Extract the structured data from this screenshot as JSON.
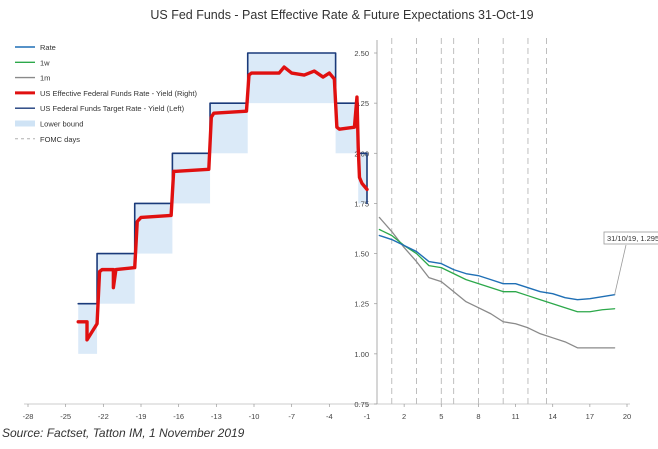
{
  "chart_data": [
    {
      "type": "line",
      "title": "US Fed Funds - Past Effective Rate & Future Expectations 31-Oct-19",
      "panel": "left",
      "x_ticks": [
        -28,
        -25,
        -22,
        -19,
        -16,
        -13,
        -10,
        -7,
        -4,
        -1
      ],
      "xlim": [
        -28,
        -1
      ],
      "right_axis_ticks": [
        2.5,
        2.25,
        2.0,
        1.75,
        1.5,
        1.25,
        1.0,
        0.75
      ],
      "ylim": [
        0.75,
        2.5
      ],
      "legend_position": "top-left",
      "legend": [
        {
          "name": "Rate",
          "color": "#1f6fb5",
          "style": "line"
        },
        {
          "name": "1w",
          "color": "#2ca84a",
          "style": "line"
        },
        {
          "name": "1m",
          "color": "#8a8a8a",
          "style": "line"
        },
        {
          "name": "US Effective Federal Funds Rate - Yield (Right)",
          "color": "#e01010",
          "style": "thick"
        },
        {
          "name": "US Federal Funds Target Rate - Yield (Left)",
          "color": "#1a3a7a",
          "style": "line"
        },
        {
          "name": "Lower bound",
          "color": "#cfe3f5",
          "style": "band"
        },
        {
          "name": "FOMC days",
          "color": "#b0b0b0",
          "style": "dash"
        }
      ],
      "series": [
        {
          "name": "US Federal Funds Target Rate - Yield (Left)",
          "color": "#1a3a7a",
          "x": [
            -24,
            -22.5,
            -22.5,
            -19.5,
            -19.5,
            -16.5,
            -16.5,
            -13.5,
            -13.5,
            -10.5,
            -10.5,
            -3.5,
            -3.5,
            -1.7,
            -1.7,
            -1.0,
            -1.0
          ],
          "y": [
            1.25,
            1.25,
            1.5,
            1.5,
            1.75,
            1.75,
            2.0,
            2.0,
            2.25,
            2.25,
            2.5,
            2.5,
            2.25,
            2.25,
            2.0,
            2.0,
            1.75
          ]
        },
        {
          "name": "Lower bound",
          "color": "#cfe3f5",
          "x": [
            -24,
            -22.5,
            -22.5,
            -19.5,
            -19.5,
            -16.5,
            -16.5,
            -13.5,
            -13.5,
            -10.5,
            -10.5,
            -3.5,
            -3.5,
            -1.7,
            -1.7,
            -1.0
          ],
          "y": [
            1.0,
            1.0,
            1.25,
            1.25,
            1.5,
            1.5,
            1.75,
            1.75,
            2.0,
            2.0,
            2.25,
            2.25,
            2.0,
            2.0,
            1.75,
            1.75
          ]
        },
        {
          "name": "US Effective Federal Funds Rate - Yield (Right)",
          "color": "#e01010",
          "x": [
            -24,
            -23.3,
            -23.3,
            -22.5,
            -22.3,
            -22.1,
            -21.2,
            -21.2,
            -21.0,
            -19.5,
            -19.3,
            -19.0,
            -16.6,
            -16.4,
            -16.2,
            -13.6,
            -13.4,
            -13.2,
            -10.6,
            -10.4,
            -10.2,
            -8.0,
            -7.6,
            -7.0,
            -6.0,
            -5.2,
            -4.5,
            -4.0,
            -3.6,
            -3.4,
            -3.2,
            -2.0,
            -1.8,
            -1.7,
            -1.6,
            -1.4,
            -1.0
          ],
          "y": [
            1.16,
            1.16,
            1.07,
            1.15,
            1.41,
            1.42,
            1.42,
            1.33,
            1.42,
            1.43,
            1.66,
            1.68,
            1.69,
            1.91,
            1.91,
            1.92,
            2.18,
            2.2,
            2.21,
            2.39,
            2.4,
            2.4,
            2.43,
            2.4,
            2.39,
            2.41,
            2.38,
            2.4,
            2.37,
            2.13,
            2.12,
            2.13,
            2.28,
            2.03,
            1.88,
            1.85,
            1.82
          ]
        }
      ]
    },
    {
      "type": "line",
      "panel": "right",
      "x_ticks": [
        2,
        5,
        8,
        11,
        14,
        17,
        20
      ],
      "xlim": [
        -1,
        20
      ],
      "y_ticks": [
        2.5,
        2.25,
        2.0,
        1.75,
        1.5,
        1.25,
        1.0,
        0.75
      ],
      "ylim": [
        0.75,
        2.5
      ],
      "fomc_days": [
        1,
        3,
        5,
        6,
        8,
        10,
        12,
        13.5
      ],
      "annotation": "31/10/19, 1.295",
      "series": [
        {
          "name": "Rate",
          "color": "#1f6fb5",
          "x": [
            0,
            1,
            2,
            3,
            4,
            5,
            6,
            7,
            8,
            9,
            10,
            11,
            12,
            13,
            14,
            15,
            16,
            17,
            18,
            19
          ],
          "y": [
            1.59,
            1.57,
            1.54,
            1.51,
            1.46,
            1.45,
            1.42,
            1.4,
            1.39,
            1.37,
            1.35,
            1.35,
            1.33,
            1.31,
            1.3,
            1.28,
            1.27,
            1.275,
            1.285,
            1.295
          ]
        },
        {
          "name": "1w",
          "color": "#2ca84a",
          "x": [
            0,
            1,
            2,
            3,
            4,
            5,
            6,
            7,
            8,
            9,
            10,
            11,
            12,
            13,
            14,
            15,
            16,
            17,
            18,
            19
          ],
          "y": [
            1.62,
            1.59,
            1.54,
            1.5,
            1.44,
            1.43,
            1.4,
            1.37,
            1.35,
            1.33,
            1.31,
            1.31,
            1.29,
            1.27,
            1.25,
            1.23,
            1.21,
            1.21,
            1.22,
            1.225
          ]
        },
        {
          "name": "1m",
          "color": "#8a8a8a",
          "x": [
            0,
            1,
            2,
            3,
            4,
            5,
            6,
            7,
            8,
            9,
            10,
            11,
            12,
            13,
            14,
            15,
            16,
            17,
            18,
            19
          ],
          "y": [
            1.68,
            1.61,
            1.53,
            1.46,
            1.38,
            1.36,
            1.31,
            1.26,
            1.23,
            1.2,
            1.16,
            1.15,
            1.13,
            1.1,
            1.08,
            1.06,
            1.03,
            1.03,
            1.03,
            1.03
          ]
        }
      ]
    }
  ],
  "source_text": "Source: Factset, Tatton IM, 1 November 2019"
}
